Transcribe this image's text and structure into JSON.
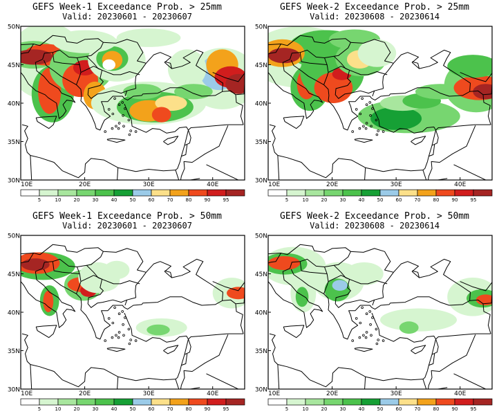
{
  "panels": [
    {
      "title": "GEFS Week-1 Exceedance Prob. > 25mm",
      "valid": "Valid: 20230601 - 20230607"
    },
    {
      "title": "GEFS Week-2 Exceedance Prob. > 25mm",
      "valid": "Valid: 20230608 - 20230614"
    },
    {
      "title": "GEFS Week-1 Exceedance Prob. > 50mm",
      "valid": "Valid: 20230601 - 20230607"
    },
    {
      "title": "GEFS Week-2 Exceedance Prob. > 50mm",
      "valid": "Valid: 20230608 - 20230614"
    }
  ],
  "map": {
    "lat_labels": [
      "50N",
      "45N",
      "40N",
      "35N",
      "30N"
    ],
    "lon_labels": [
      "10E",
      "20E",
      "30E",
      "40E"
    ],
    "extent": {
      "lon_min": 10,
      "lon_max": 45,
      "lat_min": 30,
      "lat_max": 50
    }
  },
  "colorbar": {
    "labels": [
      "5",
      "10",
      "20",
      "30",
      "40",
      "50",
      "60",
      "70",
      "80",
      "90",
      "95"
    ],
    "colors": [
      "#ffffff",
      "#d6f5d0",
      "#a8e69e",
      "#77d670",
      "#4cc24c",
      "#16a035",
      "#9bcbe8",
      "#fce08a",
      "#f3a21b",
      "#ef4a1e",
      "#d11d1d",
      "#a52523"
    ]
  }
}
